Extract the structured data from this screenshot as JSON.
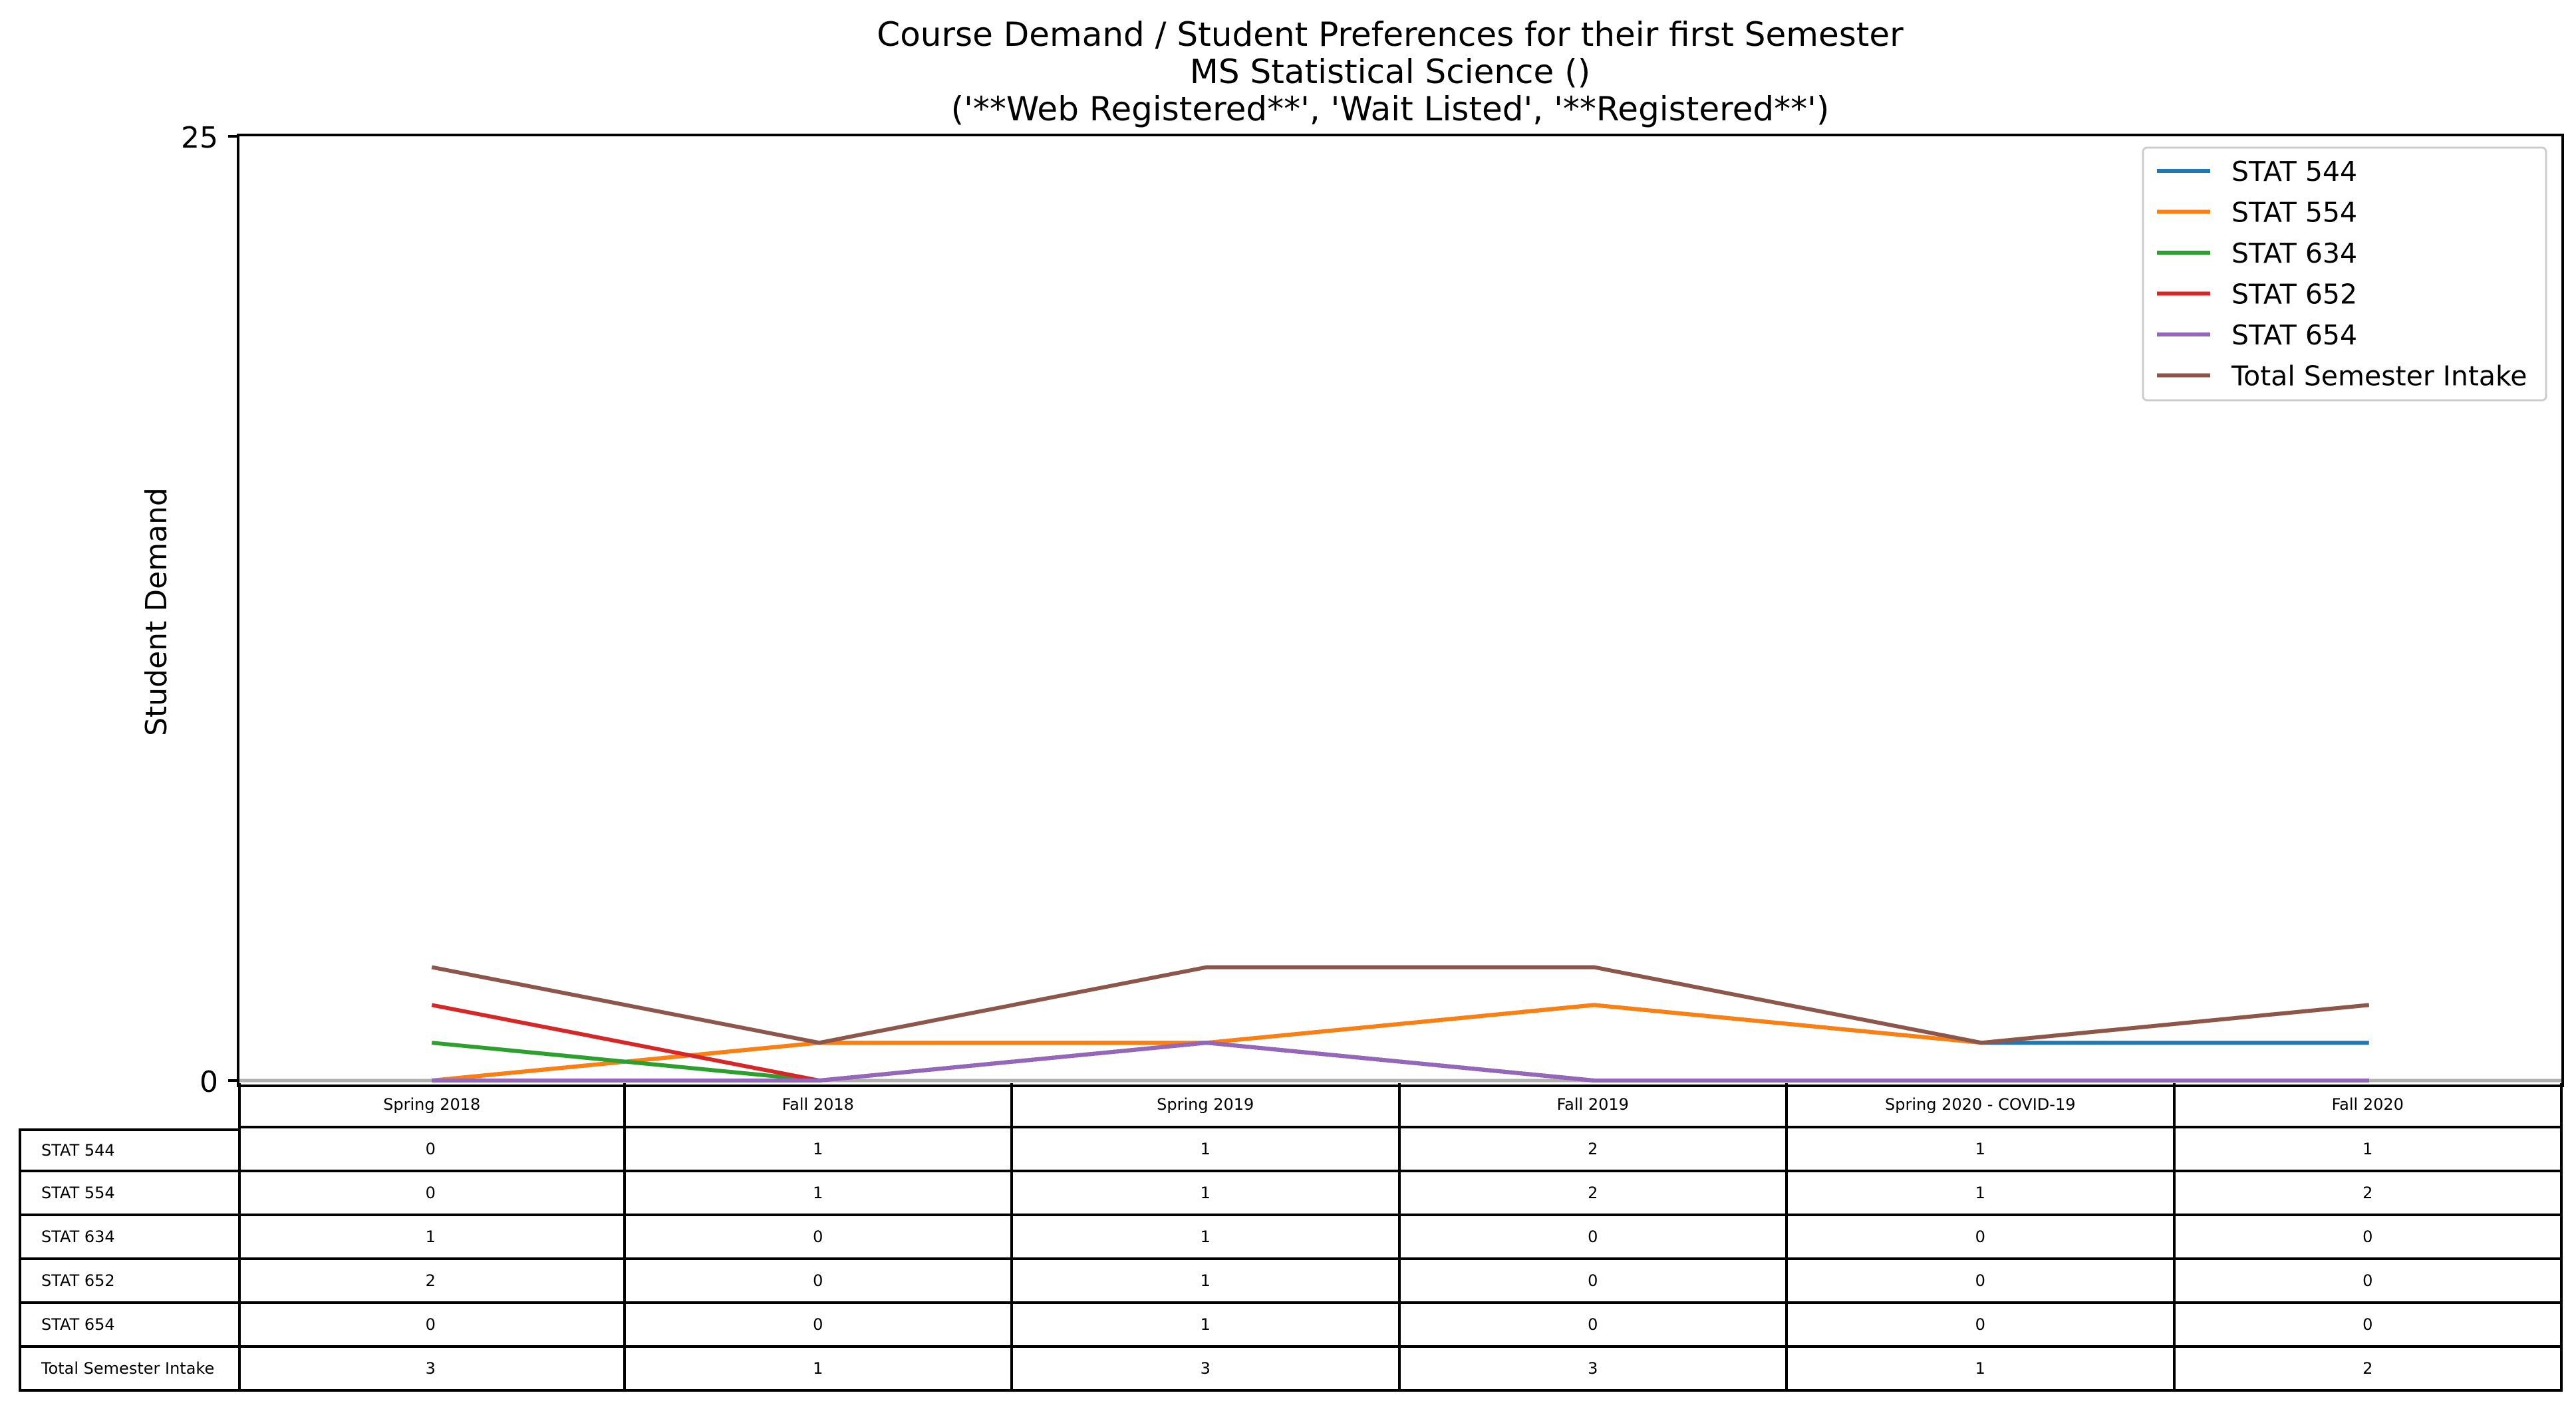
{
  "chart_data": {
    "type": "line",
    "title": "Course Demand / Student Preferences for their first Semester",
    "subtitle": "MS Statistical Science ()",
    "subtitle2": "('**Web Registered**', 'Wait Listed', '**Registered**')",
    "xlabel": "",
    "ylabel": "Student Demand",
    "ylim": [
      0,
      25
    ],
    "yticks": [
      "0",
      "25"
    ],
    "grid": false,
    "legend_position": "top-right",
    "categories": [
      "Spring 2018",
      "Fall 2018",
      "Spring 2019",
      "Fall 2019",
      "Spring 2020 - COVID-19",
      "Fall 2020"
    ],
    "series": [
      {
        "name": "STAT 544",
        "color": "#1f77b4",
        "values": [
          0,
          1,
          1,
          2,
          1,
          1
        ]
      },
      {
        "name": "STAT 554",
        "color": "#ff7f0e",
        "values": [
          0,
          1,
          1,
          2,
          1,
          2
        ]
      },
      {
        "name": "STAT 634",
        "color": "#2ca02c",
        "values": [
          1,
          0,
          1,
          0,
          0,
          0
        ]
      },
      {
        "name": "STAT 652",
        "color": "#d62728",
        "values": [
          2,
          0,
          1,
          0,
          0,
          0
        ]
      },
      {
        "name": "STAT 654",
        "color": "#9467bd",
        "values": [
          0,
          0,
          1,
          0,
          0,
          0
        ]
      },
      {
        "name": "Total Semester Intake",
        "color": "#8c564b",
        "values": [
          3,
          1,
          3,
          3,
          1,
          2
        ]
      }
    ]
  }
}
